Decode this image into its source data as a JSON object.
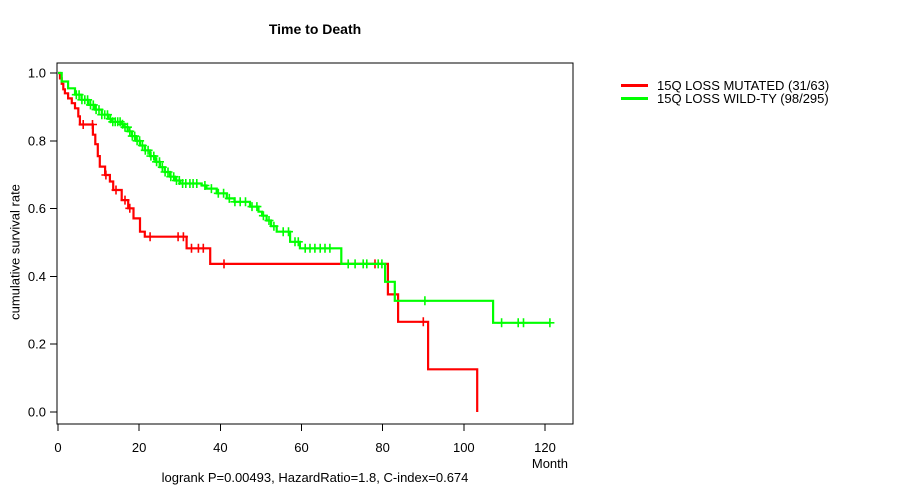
{
  "title": "Time to Death",
  "ylabel": "cumulative survival rate",
  "xlabel": "Month",
  "footnote": "logrank P=0.00493, HazardRatio=1.8, C-index=0.674",
  "legend": [
    {
      "label": "15Q LOSS MUTATED (31/63)",
      "color": "#ff0000"
    },
    {
      "label": "15Q LOSS WILD-TY (98/295)",
      "color": "#00ff00"
    }
  ],
  "chart_data": {
    "type": "line",
    "subtype": "kaplan-meier-step-survival",
    "title": "Time to Death",
    "xlabel": "Month",
    "ylabel": "cumulative survival rate",
    "xlim": [
      0,
      127
    ],
    "ylim": [
      0.0,
      1.0
    ],
    "x_ticks": [
      0,
      20,
      40,
      60,
      80,
      100,
      120
    ],
    "y_ticks": [
      0.0,
      0.2,
      0.4,
      0.6,
      0.8,
      1.0
    ],
    "grid": false,
    "legend_position": "right-outside",
    "annotation": "logrank P=0.00493, HazardRatio=1.8, C-index=0.674",
    "stats": {
      "logrank_p": 0.00493,
      "hazard_ratio": 1.8,
      "c_index": 0.674
    },
    "series": [
      {
        "name": "15Q LOSS MUTATED (31/63)",
        "color": "#ff0000",
        "events_over_n": "31/63",
        "steps": [
          [
            0,
            1.0
          ],
          [
            0.5,
            0.984
          ],
          [
            0.9,
            0.968
          ],
          [
            1.3,
            0.952
          ],
          [
            1.7,
            0.94
          ],
          [
            2.5,
            0.925
          ],
          [
            3.4,
            0.911
          ],
          [
            4.2,
            0.896
          ],
          [
            5.0,
            0.872
          ],
          [
            5.4,
            0.848
          ],
          [
            8.6,
            0.818
          ],
          [
            9.2,
            0.79
          ],
          [
            9.8,
            0.755
          ],
          [
            10.3,
            0.724
          ],
          [
            11.6,
            0.699
          ],
          [
            12.8,
            0.68
          ],
          [
            13.6,
            0.655
          ],
          [
            15.7,
            0.625
          ],
          [
            17.3,
            0.601
          ],
          [
            18.6,
            0.571
          ],
          [
            20.2,
            0.532
          ],
          [
            21.4,
            0.517
          ],
          [
            31.7,
            0.483
          ],
          [
            37.5,
            0.437
          ],
          [
            81.3,
            0.347
          ],
          [
            83.8,
            0.266
          ],
          [
            91.2,
            0.126
          ],
          [
            103.3,
            0.0
          ]
        ],
        "censor_marks": [
          6.2,
          8.5,
          11.8,
          14.3,
          16.5,
          17.7,
          22.7,
          29.6,
          30.9,
          32.9,
          34.6,
          35.8,
          40.9,
          78.1,
          90.0
        ]
      },
      {
        "name": "15Q LOSS WILD-TY (98/295)",
        "color": "#00ff00",
        "events_over_n": "98/295",
        "steps": [
          [
            0,
            1.0
          ],
          [
            0.9,
            0.975
          ],
          [
            2.5,
            0.955
          ],
          [
            4.2,
            0.936
          ],
          [
            5.8,
            0.921
          ],
          [
            7.5,
            0.906
          ],
          [
            9.1,
            0.892
          ],
          [
            10.8,
            0.877
          ],
          [
            12.4,
            0.865
          ],
          [
            13.2,
            0.856
          ],
          [
            15.5,
            0.849
          ],
          [
            16.2,
            0.84
          ],
          [
            17.2,
            0.828
          ],
          [
            18.2,
            0.814
          ],
          [
            19.2,
            0.8
          ],
          [
            20.2,
            0.786
          ],
          [
            21.4,
            0.772
          ],
          [
            22.7,
            0.755
          ],
          [
            24.0,
            0.738
          ],
          [
            25.1,
            0.722
          ],
          [
            26.3,
            0.708
          ],
          [
            27.6,
            0.694
          ],
          [
            28.8,
            0.683
          ],
          [
            30.1,
            0.674
          ],
          [
            35.4,
            0.668
          ],
          [
            36.6,
            0.659
          ],
          [
            39.1,
            0.645
          ],
          [
            41.6,
            0.63
          ],
          [
            43.5,
            0.62
          ],
          [
            47.3,
            0.606
          ],
          [
            49.4,
            0.591
          ],
          [
            50.3,
            0.579
          ],
          [
            51.4,
            0.565
          ],
          [
            52.5,
            0.548
          ],
          [
            53.9,
            0.532
          ],
          [
            57.2,
            0.502
          ],
          [
            59.6,
            0.483
          ],
          [
            69.8,
            0.437
          ],
          [
            80.6,
            0.384
          ],
          [
            83.0,
            0.328
          ],
          [
            107.2,
            0.263
          ],
          [
            121.2,
            0.263
          ]
        ],
        "censor_marks": [
          4.5,
          5.2,
          5.9,
          6.6,
          7.3,
          8.0,
          8.7,
          9.4,
          10.1,
          10.8,
          11.5,
          12.2,
          12.9,
          13.5,
          14.1,
          14.7,
          15.3,
          15.9,
          16.5,
          17.1,
          17.7,
          18.3,
          18.9,
          19.5,
          20.1,
          20.8,
          21.5,
          22.2,
          22.9,
          23.6,
          24.3,
          25.0,
          25.7,
          26.4,
          27.1,
          27.8,
          28.5,
          29.2,
          29.9,
          30.7,
          31.5,
          32.5,
          33.3,
          34.2,
          36.2,
          37.8,
          39.5,
          40.8,
          42.2,
          43.6,
          44.9,
          46.2,
          47.8,
          49.0,
          50.6,
          52.0,
          53.2,
          55.5,
          56.8,
          58.4,
          59.2,
          60.9,
          62.1,
          63.3,
          64.6,
          65.8,
          67.0,
          71.5,
          73.2,
          75.2,
          76.1,
          78.9,
          79.8,
          90.4,
          109.3,
          113.4,
          114.7,
          121.2
        ]
      }
    ]
  }
}
